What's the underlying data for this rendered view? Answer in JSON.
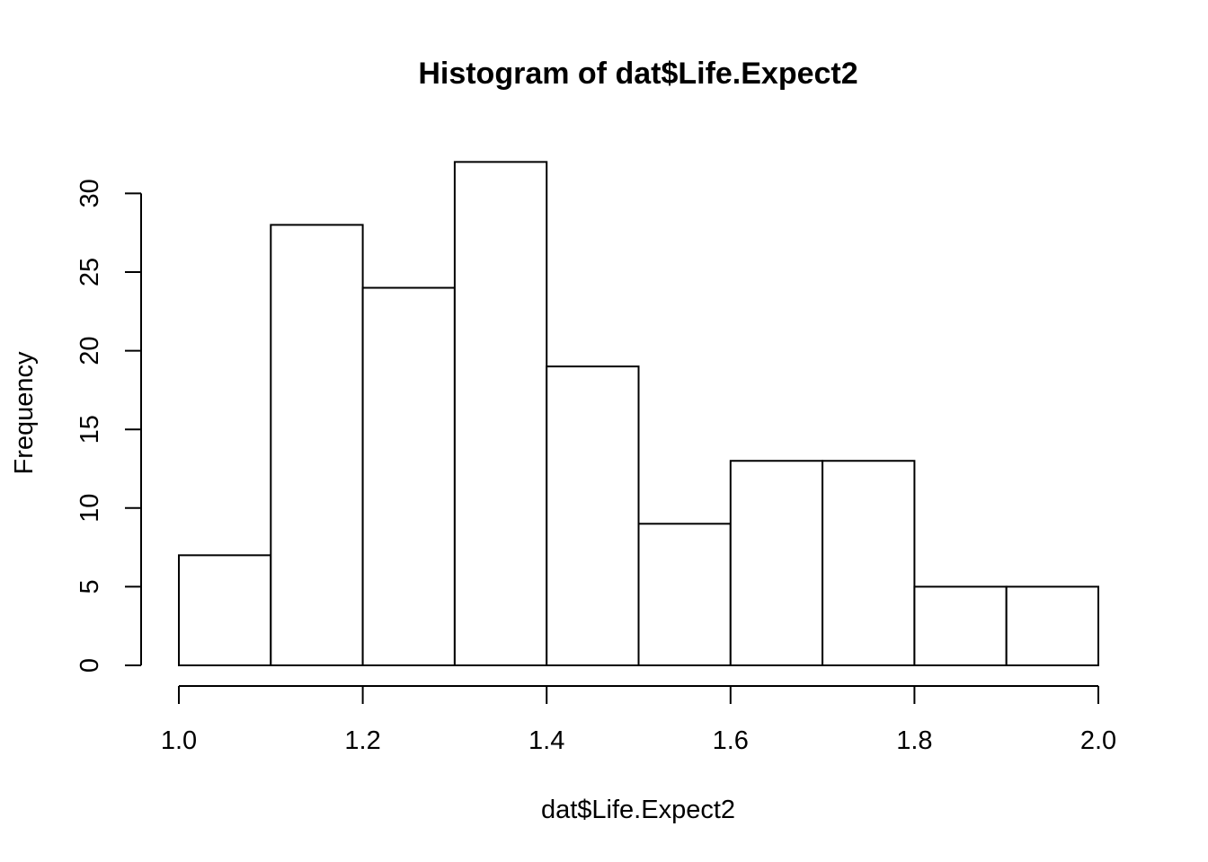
{
  "chart_data": {
    "type": "bar",
    "title": "Histogram of dat$Life.Expect2",
    "xlabel": "dat$Life.Expect2",
    "ylabel": "Frequency",
    "bins": [
      {
        "from": 1.0,
        "to": 1.1,
        "count": 7
      },
      {
        "from": 1.1,
        "to": 1.2,
        "count": 28
      },
      {
        "from": 1.2,
        "to": 1.3,
        "count": 24
      },
      {
        "from": 1.3,
        "to": 1.4,
        "count": 32
      },
      {
        "from": 1.4,
        "to": 1.5,
        "count": 19
      },
      {
        "from": 1.5,
        "to": 1.6,
        "count": 9
      },
      {
        "from": 1.6,
        "to": 1.7,
        "count": 13
      },
      {
        "from": 1.7,
        "to": 1.8,
        "count": 13
      },
      {
        "from": 1.8,
        "to": 1.9,
        "count": 5
      },
      {
        "from": 1.9,
        "to": 2.0,
        "count": 5
      }
    ],
    "xlim": [
      1.0,
      2.0
    ],
    "ylim": [
      0,
      32
    ],
    "x_ticks": [
      "1.0",
      "1.2",
      "1.4",
      "1.6",
      "1.8",
      "2.0"
    ],
    "y_ticks": [
      "0",
      "5",
      "10",
      "15",
      "20",
      "25",
      "30"
    ],
    "grid": false,
    "colors": {
      "bar_fill": "#ffffff",
      "bar_stroke": "#000000",
      "background": "#ffffff"
    }
  }
}
